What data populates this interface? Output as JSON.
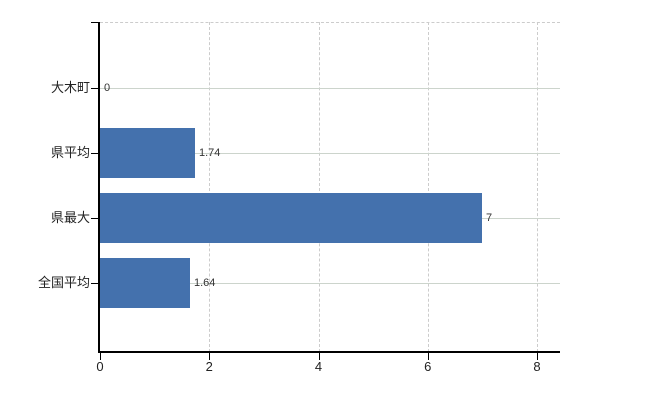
{
  "chart_data": {
    "type": "bar",
    "orientation": "horizontal",
    "categories": [
      "大木町",
      "県平均",
      "県最大",
      "全国平均"
    ],
    "values": [
      0,
      1.74,
      7,
      1.64
    ],
    "value_labels": [
      "0",
      "1.74",
      "7",
      "1.64"
    ],
    "x_tick_labels": [
      "0",
      "2",
      "4",
      "6",
      "8"
    ],
    "x_tick_values": [
      0,
      2,
      4,
      6,
      8
    ],
    "xlim": [
      0,
      8.42
    ],
    "grid": true,
    "legend": "none",
    "colors": {
      "bar": "#4471ad",
      "axis": "#000000",
      "grid_dashed": "#cccccc",
      "grid_solid": "#ccd4cc",
      "category_label": "#222222",
      "value_label": "#333333",
      "background": "#ffffff"
    }
  }
}
